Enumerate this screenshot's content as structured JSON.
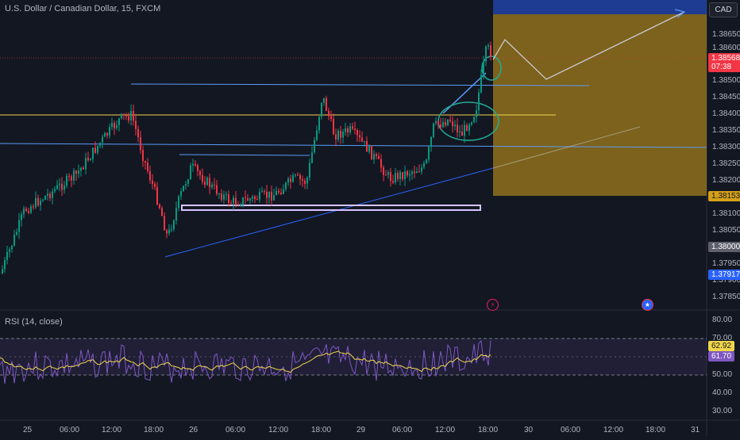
{
  "header": {
    "symbol_title": "U.S. Dollar / Canadian Dollar, 15, FXCM",
    "currency_button": "CAD"
  },
  "price_axis": {
    "ticks": [
      "1.38650",
      "1.38600",
      "1.38550",
      "1.38500",
      "1.38450",
      "1.38400",
      "1.38350",
      "1.38300",
      "1.38250",
      "1.38200",
      "1.38100",
      "1.38050",
      "1.37950",
      "1.37900",
      "1.37850"
    ],
    "badges": [
      {
        "label": "1.38568",
        "sub": "07:38",
        "color": "#f23645"
      },
      {
        "label": "1.38153",
        "color": "#d4a017",
        "text_color": "#131722"
      },
      {
        "label": "1.38000",
        "color": "#5d606b"
      },
      {
        "label": "1.37917",
        "color": "#2962ff"
      }
    ]
  },
  "rsi": {
    "label": "RSI (14, close)",
    "ticks": [
      "80.00",
      "70.00",
      "50.00",
      "40.00",
      "30.00"
    ],
    "values": [
      {
        "label": "62.92",
        "color": "#f0d64a",
        "text_color": "#131722"
      },
      {
        "label": "61.70",
        "color": "#7e57c2"
      }
    ]
  },
  "time_axis": {
    "ticks": [
      "25",
      "06:00",
      "12:00",
      "18:00",
      "26",
      "06:00",
      "12:00",
      "18:00",
      "29",
      "06:00",
      "12:00",
      "18:00",
      "30",
      "06:00",
      "12:00",
      "18:00",
      "31"
    ]
  },
  "colors": {
    "up_candle": "#089981",
    "down_candle": "#f23645",
    "horizontal_lines": "#2962ff",
    "support_resistance_yellow": "#f0d64a",
    "target_zone": "#d4a017",
    "stop_zone": "#2962ff",
    "rsi_line": "#7e57c2",
    "rsi_ma": "#f0d64a",
    "rectangle": "#9c27b0"
  },
  "icons": [
    "lightning-icon",
    "us-flag-icon"
  ]
}
